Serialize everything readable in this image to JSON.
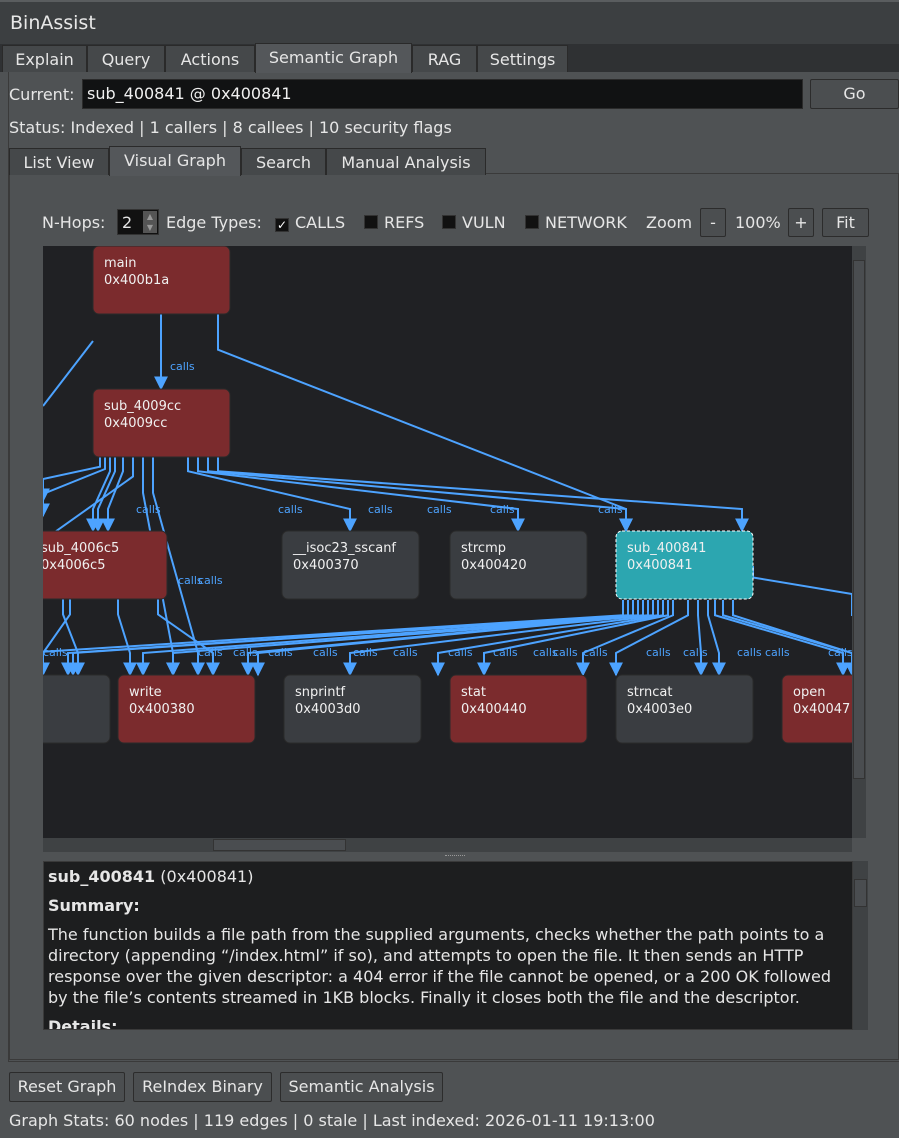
{
  "app_title": "BinAssist",
  "tabs": [
    "Explain",
    "Query",
    "Actions",
    "Semantic Graph",
    "RAG",
    "Settings"
  ],
  "active_tab": "Semantic Graph",
  "current": {
    "label": "Current:",
    "value": "sub_400841 @ 0x400841",
    "go": "Go"
  },
  "status": "Status: Indexed | 1 callers | 8 callees | 10 security flags",
  "subtabs": [
    "List View",
    "Visual Graph",
    "Search",
    "Manual Analysis"
  ],
  "active_subtab": "Visual Graph",
  "toolbar": {
    "nhops_label": "N-Hops:",
    "nhops": "2",
    "edge_types_label": "Edge Types:",
    "edge_types": [
      {
        "label": "CALLS",
        "checked": true
      },
      {
        "label": "REFS",
        "checked": false
      },
      {
        "label": "VULN",
        "checked": false
      },
      {
        "label": "NETWORK",
        "checked": false
      }
    ],
    "zoom_label": "Zoom",
    "zoom_out": "-",
    "zoom_value": "100%",
    "zoom_in": "+",
    "fit": "Fit"
  },
  "graph": {
    "edge_label": "calls",
    "colors": {
      "vuln": "#7b2b2d",
      "normal": "#3a3d41",
      "selected": "#2ca6b0",
      "edge": "#4da3ff"
    },
    "nodes": [
      {
        "name": "main",
        "addr": "0x400b1a",
        "kind": "vuln"
      },
      {
        "name": "sub_4009cc",
        "addr": "0x4009cc",
        "kind": "vuln"
      },
      {
        "name": "sub_4006c5",
        "addr": "0x4006c5",
        "kind": "vuln"
      },
      {
        "name": "__isoc23_sscanf",
        "addr": "0x400370",
        "kind": "normal"
      },
      {
        "name": "strcmp",
        "addr": "0x400420",
        "kind": "normal"
      },
      {
        "name": "sub_400841",
        "addr": "0x400841",
        "kind": "selected"
      },
      {
        "name": "",
        "addr": "",
        "kind": "normal"
      },
      {
        "name": "write",
        "addr": "0x400380",
        "kind": "vuln"
      },
      {
        "name": "snprintf",
        "addr": "0x4003d0",
        "kind": "normal"
      },
      {
        "name": "stat",
        "addr": "0x400440",
        "kind": "vuln"
      },
      {
        "name": "strncat",
        "addr": "0x4003e0",
        "kind": "normal"
      },
      {
        "name": "open",
        "addr": "0x40047",
        "kind": "vuln"
      }
    ]
  },
  "details": {
    "name": "sub_400841",
    "addr": "(0x400841)",
    "summary_heading": "Summary:",
    "summary": "The function builds a file path from the supplied arguments, checks whether the path points to a directory (appending “/index.html” if so), and attempts to open the file. It then sends an HTTP response over the given descriptor: a 404 error if the file cannot be opened, or a 200 OK followed by the file’s contents streamed in 1KB blocks. Finally it closes both the file and the descriptor.",
    "details_heading": "Details:"
  },
  "buttons": {
    "reset": "Reset Graph",
    "reindex": "ReIndex Binary",
    "semantic": "Semantic Analysis"
  },
  "footer": "Graph Stats: 60 nodes | 119 edges | 0 stale | Last indexed: 2026-01-11 19:13:00"
}
